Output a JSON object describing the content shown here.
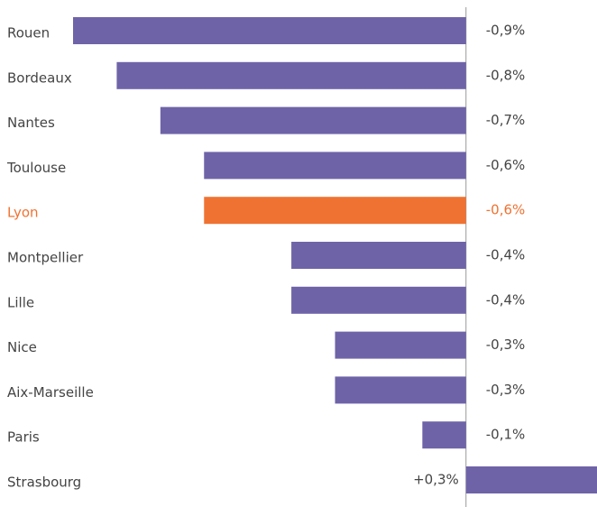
{
  "chart_data": {
    "type": "bar",
    "orientation": "horizontal",
    "categories": [
      "Rouen",
      "Bordeaux",
      "Nantes",
      "Toulouse",
      "Lyon",
      "Montpellier",
      "Lille",
      "Nice",
      "Aix-Marseille",
      "Paris",
      "Strasbourg"
    ],
    "values": [
      -0.9,
      -0.8,
      -0.7,
      -0.6,
      -0.6,
      -0.4,
      -0.4,
      -0.3,
      -0.3,
      -0.1,
      0.3
    ],
    "value_labels": [
      "-0,9%",
      "-0,8%",
      "-0,7%",
      "-0,6%",
      "-0,6%",
      "-0,4%",
      "-0,4%",
      "-0,3%",
      "-0,3%",
      "-0,1%",
      "+0,3%"
    ],
    "colors": [
      "#6f63a8",
      "#6f63a8",
      "#6f63a8",
      "#6f63a8",
      "#f07232",
      "#6f63a8",
      "#6f63a8",
      "#6f63a8",
      "#6f63a8",
      "#6f63a8",
      "#6f63a8"
    ],
    "xlim": [
      -0.9,
      0.3
    ]
  }
}
